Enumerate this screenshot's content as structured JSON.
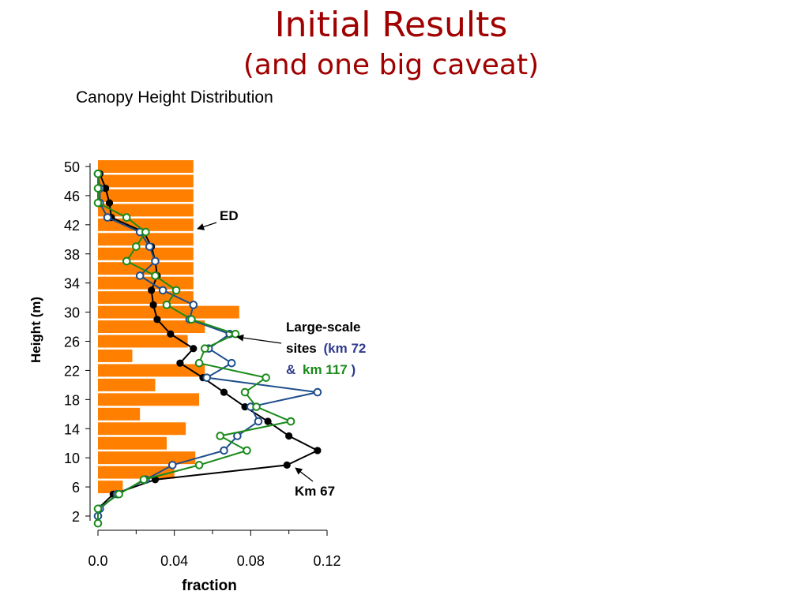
{
  "slide": {
    "title": "Initial Results",
    "subtitle": "(and one big caveat)"
  },
  "chart_data": {
    "type": "line",
    "title": "Canopy Height Distribution",
    "xlabel": "fraction",
    "ylabel": "Height (m)",
    "xlim": [
      0,
      0.12
    ],
    "ylim": [
      1,
      51
    ],
    "xticks": [
      "0.0",
      "0.04",
      "0.08",
      "0.12"
    ],
    "xtick_values": [
      0,
      0.04,
      0.08,
      0.12
    ],
    "yticks": [
      "2",
      "6",
      "10",
      "14",
      "18",
      "22",
      "26",
      "30",
      "34",
      "38",
      "42",
      "46",
      "50"
    ],
    "ytick_values": [
      2,
      6,
      10,
      14,
      18,
      22,
      26,
      30,
      34,
      38,
      42,
      46,
      50
    ],
    "grid": false,
    "bars": {
      "name": "ED",
      "color": "#ff8000",
      "heights": [
        6,
        8,
        10,
        12,
        14,
        16,
        18,
        20,
        22,
        24,
        26,
        28,
        30,
        32,
        34,
        36,
        38,
        40,
        42,
        44,
        46,
        48,
        50
      ],
      "values": [
        0.013,
        0.04,
        0.051,
        0.036,
        0.046,
        0.022,
        0.053,
        0.03,
        0.056,
        0.018,
        0.047,
        0.056,
        0.074,
        0.05,
        0.05,
        0.05,
        0.05,
        0.05,
        0.05,
        0.05,
        0.05,
        0.05,
        0.05
      ]
    },
    "series": [
      {
        "color": "#000000",
        "marker": "filled",
        "points": [
          [
            0.0,
            2
          ],
          [
            0.0,
            3
          ],
          [
            0.008,
            5
          ],
          [
            0.03,
            7
          ],
          [
            0.099,
            9
          ],
          [
            0.115,
            11
          ],
          [
            0.1,
            13
          ],
          [
            0.089,
            15
          ],
          [
            0.077,
            17
          ],
          [
            0.066,
            19
          ],
          [
            0.055,
            21
          ],
          [
            0.043,
            23
          ],
          [
            0.05,
            25
          ],
          [
            0.038,
            27
          ],
          [
            0.031,
            29
          ],
          [
            0.029,
            31
          ],
          [
            0.028,
            33
          ],
          [
            0.031,
            35
          ],
          [
            0.03,
            37
          ],
          [
            0.028,
            39
          ],
          [
            0.024,
            41
          ],
          [
            0.007,
            43
          ],
          [
            0.006,
            45
          ],
          [
            0.004,
            47
          ],
          [
            0.001,
            49
          ]
        ]
      },
      {
        "color": "#1f4e8c",
        "marker": "open",
        "points": [
          [
            0.0,
            2
          ],
          [
            0.001,
            3
          ],
          [
            0.01,
            5
          ],
          [
            0.025,
            7
          ],
          [
            0.039,
            9
          ],
          [
            0.066,
            11
          ],
          [
            0.073,
            13
          ],
          [
            0.084,
            15
          ],
          [
            0.08,
            17
          ],
          [
            0.115,
            19
          ],
          [
            0.057,
            21
          ],
          [
            0.07,
            23
          ],
          [
            0.058,
            25
          ],
          [
            0.069,
            27
          ],
          [
            0.048,
            29
          ],
          [
            0.05,
            31
          ],
          [
            0.034,
            33
          ],
          [
            0.022,
            35
          ],
          [
            0.03,
            37
          ],
          [
            0.027,
            39
          ],
          [
            0.022,
            41
          ],
          [
            0.005,
            43
          ],
          [
            0.001,
            45
          ],
          [
            0.001,
            47
          ],
          [
            0.0,
            49
          ]
        ]
      },
      {
        "color": "#1a8a1a",
        "marker": "open",
        "points": [
          [
            0.0,
            1
          ],
          [
            0.0,
            3
          ],
          [
            0.011,
            5
          ],
          [
            0.024,
            7
          ],
          [
            0.053,
            9
          ],
          [
            0.078,
            11
          ],
          [
            0.064,
            13
          ],
          [
            0.101,
            15
          ],
          [
            0.083,
            17
          ],
          [
            0.077,
            19
          ],
          [
            0.088,
            21
          ],
          [
            0.053,
            23
          ],
          [
            0.056,
            25
          ],
          [
            0.072,
            27
          ],
          [
            0.049,
            29
          ],
          [
            0.036,
            31
          ],
          [
            0.041,
            33
          ],
          [
            0.03,
            35
          ],
          [
            0.015,
            37
          ],
          [
            0.02,
            39
          ],
          [
            0.025,
            41
          ],
          [
            0.015,
            43
          ],
          [
            0.0,
            45
          ],
          [
            0.0,
            47
          ],
          [
            0.0,
            49
          ]
        ]
      }
    ],
    "annotations": {
      "ed": "ED",
      "large_scale_1": "Large-scale",
      "large_scale_2": "sites",
      "km72": "(km 72",
      "amp": "&",
      "km117": "km 117",
      "close_paren": ")",
      "km67": "Km 67"
    },
    "annotation_colors": {
      "km72": "#2e3a8c",
      "km117": "#1a8a1a",
      "default": "#000000"
    }
  }
}
